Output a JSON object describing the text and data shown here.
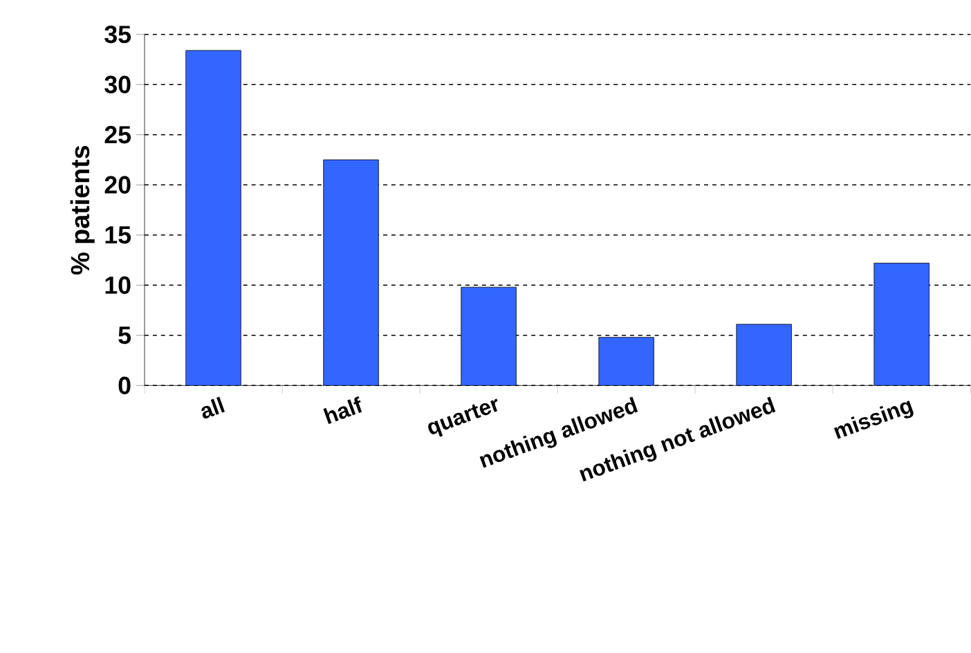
{
  "chart_data": {
    "type": "bar",
    "ylabel": "% patients",
    "categories": [
      "all",
      "half",
      "quarter",
      "nothing allowed",
      "nothing not allowed",
      "missing"
    ],
    "values": [
      33.4,
      22.5,
      9.8,
      4.8,
      6.1,
      12.2
    ],
    "color": "#3366ff",
    "ylim": [
      0,
      35
    ],
    "yticks": [
      0,
      5,
      10,
      15,
      20,
      25,
      30,
      35
    ],
    "grid": "y"
  }
}
